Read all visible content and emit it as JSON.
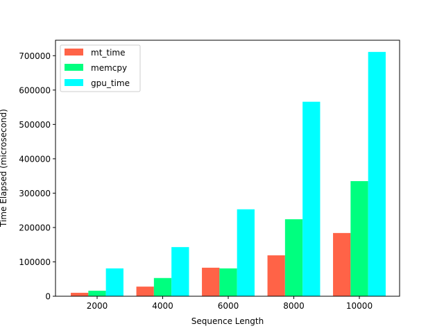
{
  "chart_data": {
    "type": "bar",
    "title": "",
    "xlabel": "Sequence Length",
    "ylabel": "Time Elapsed (microsecond)",
    "categories": [
      "2000",
      "4000",
      "6000",
      "8000",
      "10000"
    ],
    "series": [
      {
        "name": "mt_time",
        "color": "#ff6347",
        "values": [
          10000,
          28000,
          83000,
          119000,
          184000
        ]
      },
      {
        "name": "memcpy",
        "color": "#00ff7f",
        "values": [
          16000,
          53000,
          81000,
          224000,
          335000
        ]
      },
      {
        "name": "gpu_time",
        "color": "#00ffff",
        "values": [
          81000,
          143000,
          253000,
          566000,
          711000
        ]
      }
    ],
    "ylim": [
      0,
      745000
    ],
    "yticks": [
      "0",
      "100000",
      "200000",
      "300000",
      "400000",
      "500000",
      "600000",
      "700000"
    ],
    "grid": false,
    "legend_position": "top-left"
  }
}
